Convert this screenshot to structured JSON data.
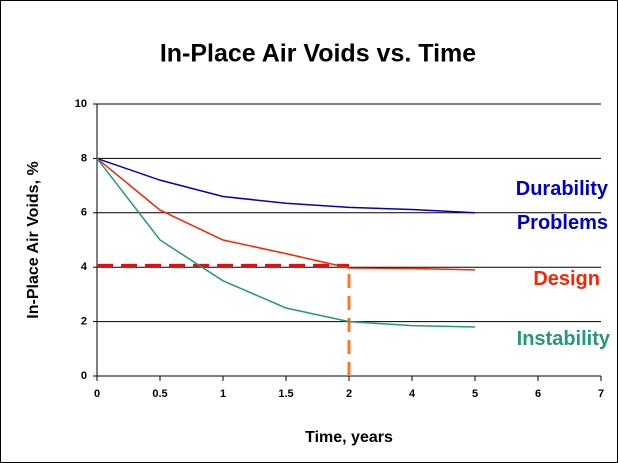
{
  "chart_data": {
    "type": "line",
    "title": "In-Place Air Voids vs. Time",
    "xlabel": "Time, years",
    "ylabel": "In-Place Air Voids, %",
    "categories": [
      "0",
      "0.5",
      "1",
      "1.5",
      "2",
      "4",
      "5",
      "6",
      "7"
    ],
    "ylim": [
      0,
      10
    ],
    "yticks": [
      0,
      2,
      4,
      6,
      8,
      10
    ],
    "grid": true,
    "series": [
      {
        "name": "Durability Problems",
        "color": "#0000cc",
        "values": [
          8,
          7.2,
          6.6,
          6.35,
          6.2,
          6.12,
          6.0,
          null,
          null
        ]
      },
      {
        "name": "Design",
        "color": "#ff2200",
        "values": [
          8,
          6.1,
          5.0,
          4.5,
          3.97,
          3.95,
          3.9,
          null,
          null
        ]
      },
      {
        "name": "Instability",
        "color": "#229977",
        "values": [
          8,
          5.0,
          3.5,
          2.5,
          2.0,
          1.85,
          1.8,
          null,
          null
        ]
      }
    ],
    "reference_lines": [
      {
        "orientation": "horizontal",
        "value": 4.05,
        "from_index": 0,
        "to_index": 4,
        "color": "#dd1111"
      },
      {
        "orientation": "vertical",
        "index": 4,
        "from_value": 0,
        "to_value": 4,
        "color": "#ff7722"
      }
    ]
  }
}
